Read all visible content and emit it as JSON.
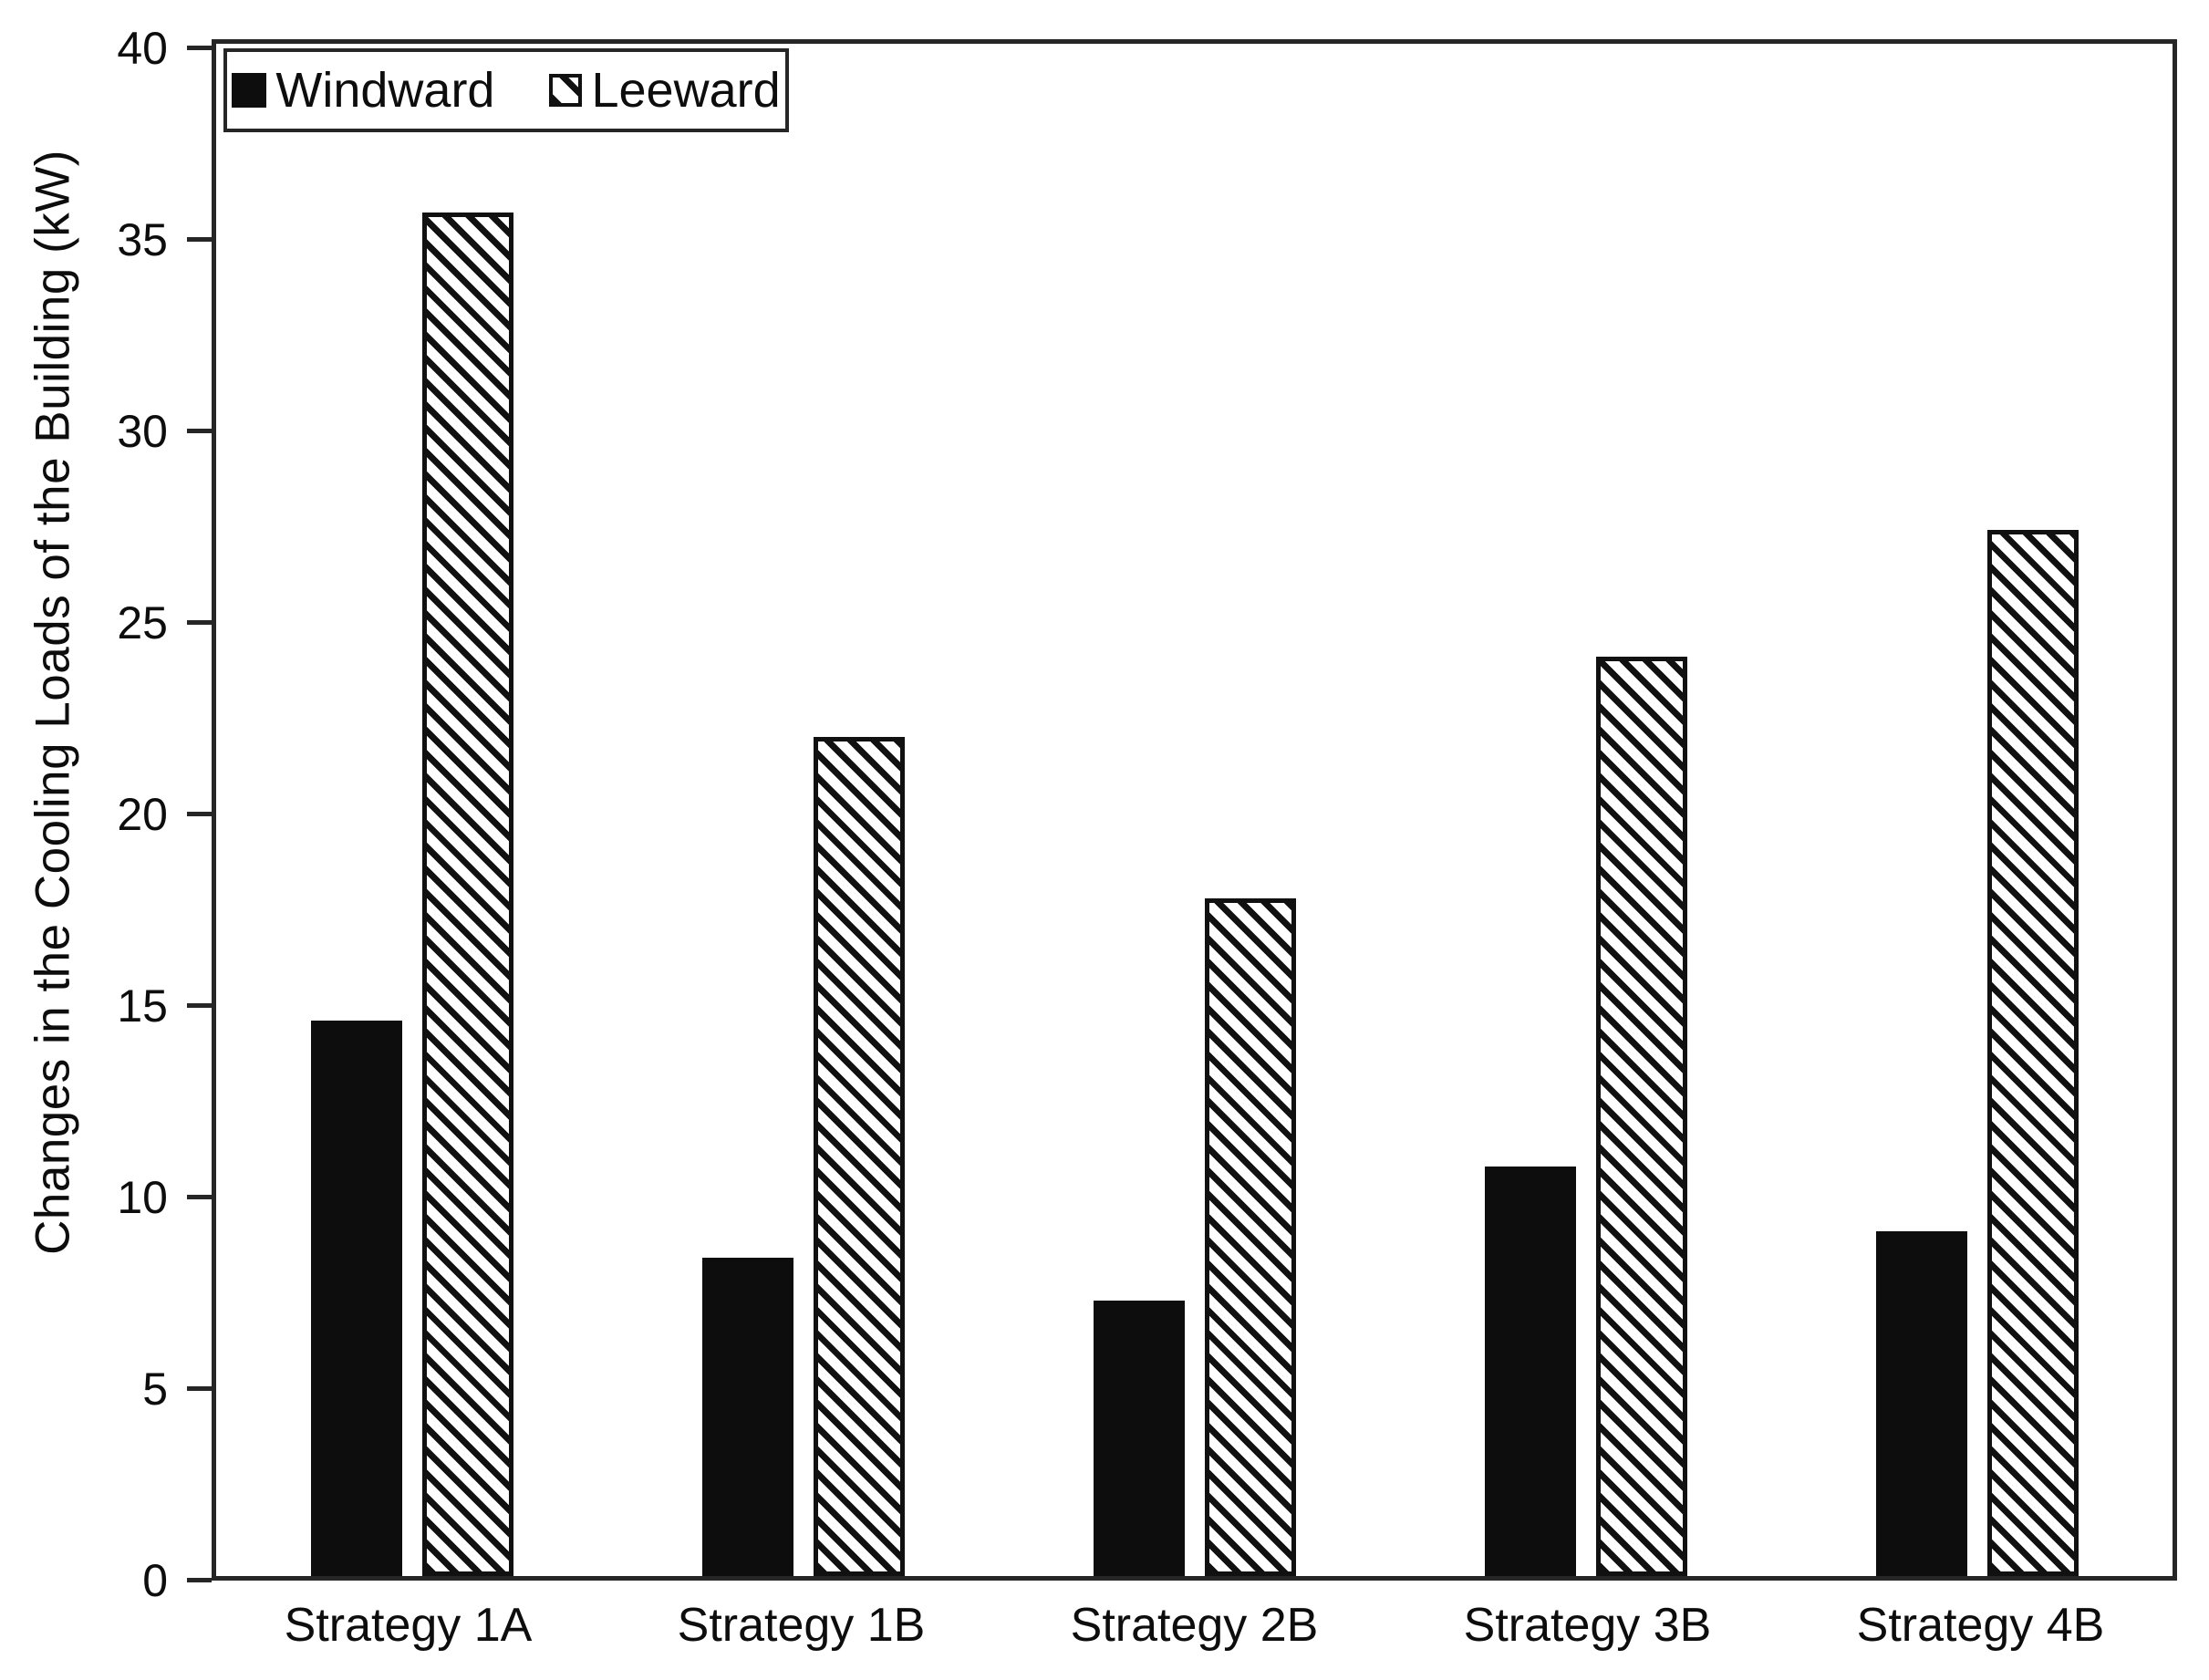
{
  "chart_data": {
    "type": "bar",
    "title": "",
    "categories": [
      "Strategy 1A",
      "Strategy 1B",
      "Strategy 2B",
      "Strategy 3B",
      "Strategy 4B"
    ],
    "series": [
      {
        "name": "Windward",
        "style": "solid-black",
        "values": [
          14.5,
          8.3,
          7.2,
          10.7,
          9.0
        ]
      },
      {
        "name": "Leeward",
        "style": "diagonal-hatch",
        "values": [
          35.6,
          21.9,
          17.7,
          24.0,
          27.3
        ]
      }
    ],
    "xlabel": "",
    "ylabel": "Changes in the Cooling Loads of the Building (kW)",
    "ylim": [
      0,
      40
    ],
    "yticks": [
      0,
      5,
      10,
      15,
      20,
      25,
      30,
      35,
      40
    ],
    "grid": false,
    "legend_position": "top-left-inside",
    "legend_orientation": "horizontal"
  },
  "colors": {
    "bar_fill": "#0d0d0d",
    "hatch_stripe": "#111111",
    "frame": "#262626",
    "background": "#ffffff",
    "text": "#0d0d0d"
  }
}
